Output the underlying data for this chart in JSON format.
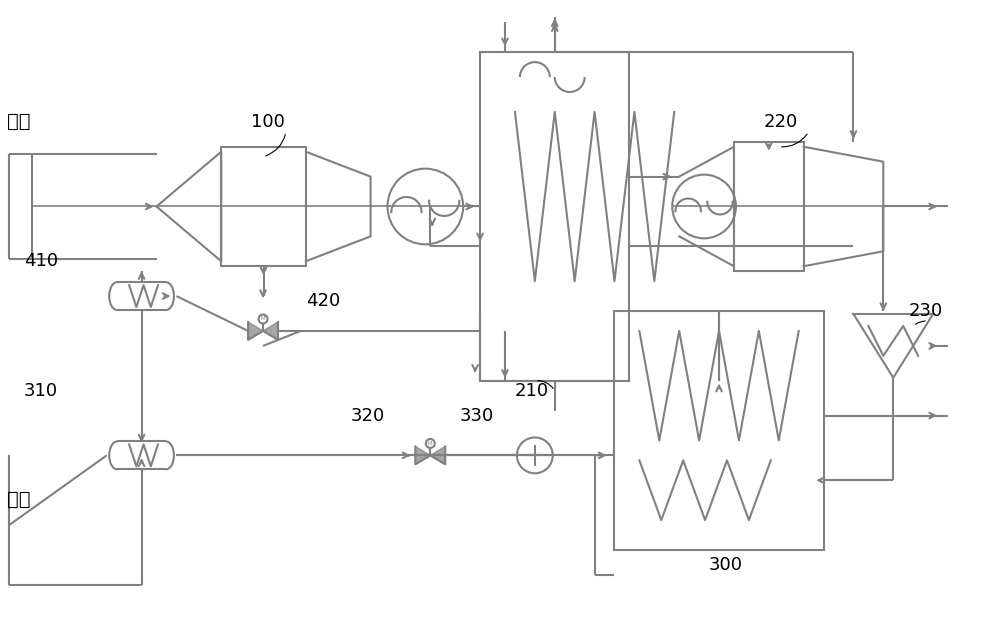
{
  "bg_color": "#ffffff",
  "line_color": "#808080",
  "line_width": 1.5,
  "title": "",
  "labels": {
    "kongqi": "空气",
    "ranliao": "燃料",
    "label_100": "100",
    "label_210": "210",
    "label_220": "220",
    "label_230": "230",
    "label_300": "300",
    "label_310": "310",
    "label_320": "320",
    "label_330": "330",
    "label_410": "410",
    "label_420": "420"
  },
  "colors": {
    "main": "#808080",
    "purple": "#9b59b6",
    "dark": "#404040"
  }
}
